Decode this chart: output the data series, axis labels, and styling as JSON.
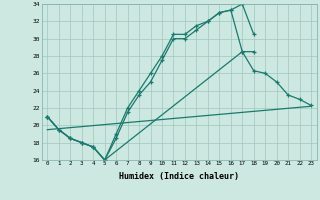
{
  "xlabel": "Humidex (Indice chaleur)",
  "background_color": "#cce8e0",
  "line_color": "#1a7a6e",
  "xlim": [
    -0.5,
    23.5
  ],
  "ylim": [
    16,
    34
  ],
  "xticks": [
    0,
    1,
    2,
    3,
    4,
    5,
    6,
    7,
    8,
    9,
    10,
    11,
    12,
    13,
    14,
    15,
    16,
    17,
    18,
    19,
    20,
    21,
    22,
    23
  ],
  "yticks": [
    16,
    18,
    20,
    22,
    24,
    26,
    28,
    30,
    32,
    34
  ],
  "s1x": [
    0,
    1,
    2,
    3,
    4,
    5,
    6,
    7,
    8,
    9,
    10,
    11,
    12,
    13,
    14,
    15,
    16,
    17,
    18
  ],
  "s1y": [
    21.0,
    19.5,
    18.5,
    18.0,
    17.5,
    16.0,
    19.0,
    22.0,
    24.0,
    26.0,
    28.0,
    30.5,
    30.5,
    31.5,
    32.0,
    33.0,
    33.3,
    34.0,
    30.5
  ],
  "s2x": [
    0,
    1,
    2,
    3,
    4,
    5,
    6,
    7,
    8,
    9,
    10,
    11,
    12,
    13,
    14,
    15,
    16,
    17,
    18
  ],
  "s2y": [
    21.0,
    19.5,
    18.5,
    18.0,
    17.5,
    16.0,
    18.5,
    21.5,
    23.5,
    25.0,
    27.5,
    30.0,
    30.0,
    31.0,
    32.0,
    33.0,
    33.3,
    28.5,
    28.5
  ],
  "s3x": [
    0,
    1,
    2,
    3,
    4,
    5,
    17,
    18,
    19,
    20,
    21,
    22,
    23
  ],
  "s3y": [
    21.0,
    19.5,
    18.5,
    18.0,
    17.5,
    16.0,
    28.5,
    26.3,
    26.0,
    25.0,
    23.5,
    23.0,
    22.3
  ],
  "s4x": [
    0,
    23
  ],
  "s4y": [
    19.5,
    22.2
  ]
}
